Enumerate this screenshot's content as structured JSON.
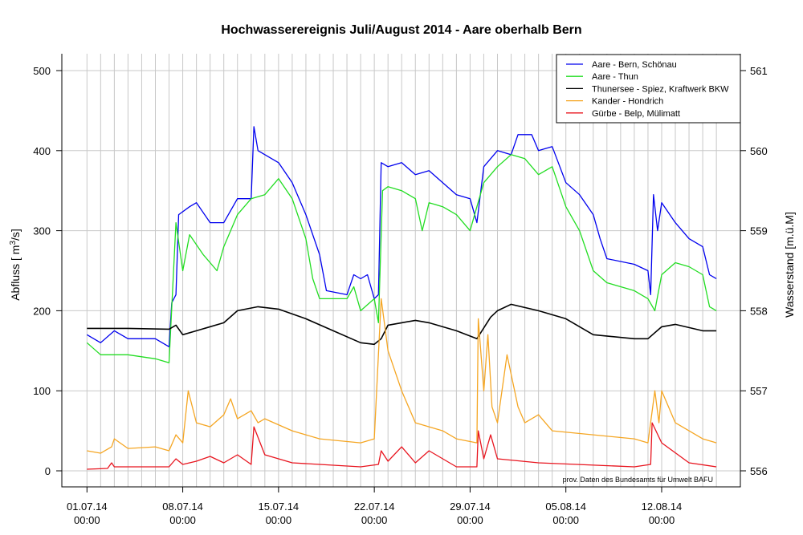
{
  "chart_data": {
    "type": "line",
    "title": "Hochwasserereignis Juli/August 2014 - Aare oberhalb Bern",
    "ylabel": "Abfluss [ m³/s]",
    "ylabel_main": "Abfluss [ m",
    "ylabel_sup": "3",
    "ylabel_end": "/s]",
    "y2label": "Wasserstand [m.ü.M]",
    "ylim": [
      0,
      500
    ],
    "y2lim": [
      556,
      561
    ],
    "yticks": [
      "0",
      "100",
      "200",
      "300",
      "400",
      "500"
    ],
    "y2ticks": [
      "556",
      "557",
      "558",
      "559",
      "560",
      "561"
    ],
    "xticks": [
      {
        "day": 0,
        "date": "01.07.14",
        "time": "00:00"
      },
      {
        "day": 7,
        "date": "08.07.14",
        "time": "00:00"
      },
      {
        "day": 14,
        "date": "15.07.14",
        "time": "00:00"
      },
      {
        "day": 21,
        "date": "22.07.14",
        "time": "00:00"
      },
      {
        "day": 28,
        "date": "29.07.14",
        "time": "00:00"
      },
      {
        "day": 35,
        "date": "05.08.14",
        "time": "00:00"
      },
      {
        "day": 42,
        "date": "12.08.14",
        "time": "00:00"
      }
    ],
    "x_unit": "days since 01.07.14 00:00",
    "grid": true,
    "legend_position": "top-right",
    "note": "prov. Daten des Bundesamts für Umwelt BAFU",
    "series": [
      {
        "name": "Aare - Bern, Schönau",
        "color": "#0000ee",
        "points": [
          [
            0,
            170
          ],
          [
            1,
            160
          ],
          [
            2,
            175
          ],
          [
            3,
            165
          ],
          [
            5,
            165
          ],
          [
            6,
            155
          ],
          [
            6.2,
            210
          ],
          [
            6.5,
            220
          ],
          [
            6.7,
            320
          ],
          [
            7.5,
            330
          ],
          [
            8,
            335
          ],
          [
            9,
            310
          ],
          [
            10,
            310
          ],
          [
            11,
            340
          ],
          [
            12,
            340
          ],
          [
            12.2,
            430
          ],
          [
            12.5,
            400
          ],
          [
            13.5,
            390
          ],
          [
            14,
            385
          ],
          [
            15,
            360
          ],
          [
            16,
            320
          ],
          [
            17,
            270
          ],
          [
            17.5,
            225
          ],
          [
            19,
            220
          ],
          [
            19.5,
            245
          ],
          [
            20,
            240
          ],
          [
            20.5,
            245
          ],
          [
            21,
            215
          ],
          [
            21.3,
            220
          ],
          [
            21.5,
            385
          ],
          [
            22,
            380
          ],
          [
            23,
            385
          ],
          [
            24,
            370
          ],
          [
            25,
            375
          ],
          [
            26,
            360
          ],
          [
            27,
            345
          ],
          [
            28,
            340
          ],
          [
            28.5,
            310
          ],
          [
            29,
            380
          ],
          [
            30,
            400
          ],
          [
            31,
            395
          ],
          [
            31.5,
            420
          ],
          [
            32.5,
            420
          ],
          [
            33,
            400
          ],
          [
            34,
            405
          ],
          [
            35,
            360
          ],
          [
            36,
            345
          ],
          [
            37,
            320
          ],
          [
            37.5,
            290
          ],
          [
            38,
            265
          ],
          [
            40,
            258
          ],
          [
            41,
            250
          ],
          [
            41.2,
            220
          ],
          [
            41.4,
            345
          ],
          [
            41.7,
            300
          ],
          [
            42,
            335
          ],
          [
            43,
            310
          ],
          [
            44,
            290
          ],
          [
            45,
            280
          ],
          [
            45.5,
            245
          ],
          [
            46,
            240
          ]
        ]
      },
      {
        "name": "Aare - Thun",
        "color": "#22dd22",
        "points": [
          [
            0,
            160
          ],
          [
            1,
            145
          ],
          [
            3,
            145
          ],
          [
            5,
            140
          ],
          [
            6,
            135
          ],
          [
            6.5,
            310
          ],
          [
            7,
            250
          ],
          [
            7.5,
            295
          ],
          [
            8.5,
            270
          ],
          [
            9.5,
            250
          ],
          [
            10,
            280
          ],
          [
            11,
            320
          ],
          [
            12,
            340
          ],
          [
            13,
            345
          ],
          [
            14,
            365
          ],
          [
            15,
            340
          ],
          [
            16,
            290
          ],
          [
            16.5,
            240
          ],
          [
            17,
            215
          ],
          [
            19,
            215
          ],
          [
            19.5,
            230
          ],
          [
            20,
            200
          ],
          [
            21,
            215
          ],
          [
            21.3,
            185
          ],
          [
            21.6,
            350
          ],
          [
            22,
            355
          ],
          [
            23,
            350
          ],
          [
            24,
            340
          ],
          [
            24.5,
            300
          ],
          [
            25,
            335
          ],
          [
            26,
            330
          ],
          [
            27,
            320
          ],
          [
            28,
            300
          ],
          [
            28.5,
            330
          ],
          [
            29,
            360
          ],
          [
            30,
            380
          ],
          [
            31,
            395
          ],
          [
            32,
            390
          ],
          [
            33,
            370
          ],
          [
            34,
            380
          ],
          [
            35,
            330
          ],
          [
            36,
            300
          ],
          [
            37,
            250
          ],
          [
            38,
            235
          ],
          [
            40,
            225
          ],
          [
            41,
            215
          ],
          [
            41.5,
            200
          ],
          [
            42,
            245
          ],
          [
            43,
            260
          ],
          [
            44,
            255
          ],
          [
            45,
            245
          ],
          [
            45.5,
            205
          ],
          [
            46,
            200
          ]
        ]
      },
      {
        "name": "Thunersee - Spiez, Kraftwerk BKW",
        "color": "#000000",
        "points": [
          [
            0,
            178
          ],
          [
            3,
            178
          ],
          [
            6,
            177
          ],
          [
            6.5,
            182
          ],
          [
            7,
            170
          ],
          [
            8,
            175
          ],
          [
            10,
            185
          ],
          [
            11,
            200
          ],
          [
            12.5,
            205
          ],
          [
            14,
            202
          ],
          [
            16,
            190
          ],
          [
            18,
            175
          ],
          [
            20,
            160
          ],
          [
            21,
            158
          ],
          [
            21.5,
            165
          ],
          [
            22,
            182
          ],
          [
            23,
            185
          ],
          [
            24,
            188
          ],
          [
            25,
            185
          ],
          [
            27,
            175
          ],
          [
            28.5,
            165
          ],
          [
            29.5,
            192
          ],
          [
            30,
            200
          ],
          [
            31,
            208
          ],
          [
            33,
            200
          ],
          [
            35,
            190
          ],
          [
            37,
            170
          ],
          [
            40,
            165
          ],
          [
            41,
            165
          ],
          [
            42,
            180
          ],
          [
            43,
            183
          ],
          [
            45,
            175
          ],
          [
            46,
            175
          ]
        ]
      },
      {
        "name": "Kander - Hondrich",
        "color": "#f5a623",
        "points": [
          [
            0,
            25
          ],
          [
            1,
            22
          ],
          [
            1.8,
            30
          ],
          [
            2,
            40
          ],
          [
            3,
            28
          ],
          [
            5,
            30
          ],
          [
            6,
            25
          ],
          [
            6.5,
            45
          ],
          [
            7,
            35
          ],
          [
            7.4,
            100
          ],
          [
            8,
            60
          ],
          [
            9,
            55
          ],
          [
            10,
            70
          ],
          [
            10.5,
            90
          ],
          [
            11,
            65
          ],
          [
            12,
            75
          ],
          [
            12.5,
            60
          ],
          [
            13,
            65
          ],
          [
            15,
            50
          ],
          [
            16,
            45
          ],
          [
            17,
            40
          ],
          [
            20,
            35
          ],
          [
            21,
            40
          ],
          [
            21.5,
            215
          ],
          [
            22,
            150
          ],
          [
            23,
            100
          ],
          [
            24,
            60
          ],
          [
            25,
            55
          ],
          [
            26,
            50
          ],
          [
            27,
            40
          ],
          [
            28.5,
            35
          ],
          [
            28.6,
            190
          ],
          [
            29,
            100
          ],
          [
            29.3,
            170
          ],
          [
            29.6,
            80
          ],
          [
            30,
            60
          ],
          [
            30.7,
            145
          ],
          [
            31.5,
            80
          ],
          [
            32,
            60
          ],
          [
            33,
            70
          ],
          [
            34,
            50
          ],
          [
            37,
            45
          ],
          [
            40,
            40
          ],
          [
            41,
            35
          ],
          [
            41.5,
            100
          ],
          [
            41.8,
            60
          ],
          [
            42,
            100
          ],
          [
            43,
            60
          ],
          [
            45,
            40
          ],
          [
            46,
            35
          ]
        ]
      },
      {
        "name": "Gürbe - Belp, Mülimatt",
        "color": "#e8141e",
        "points": [
          [
            0,
            2
          ],
          [
            1.5,
            3
          ],
          [
            1.8,
            10
          ],
          [
            2,
            5
          ],
          [
            6,
            5
          ],
          [
            6.5,
            15
          ],
          [
            7,
            8
          ],
          [
            8,
            12
          ],
          [
            9,
            18
          ],
          [
            10,
            10
          ],
          [
            11,
            20
          ],
          [
            12,
            8
          ],
          [
            12.2,
            55
          ],
          [
            13,
            20
          ],
          [
            15,
            10
          ],
          [
            20,
            5
          ],
          [
            21.3,
            8
          ],
          [
            21.5,
            25
          ],
          [
            22,
            12
          ],
          [
            23,
            30
          ],
          [
            24,
            10
          ],
          [
            25,
            25
          ],
          [
            27,
            5
          ],
          [
            28.5,
            5
          ],
          [
            28.6,
            50
          ],
          [
            29,
            15
          ],
          [
            29.5,
            45
          ],
          [
            30,
            15
          ],
          [
            33,
            10
          ],
          [
            40,
            5
          ],
          [
            41.2,
            8
          ],
          [
            41.3,
            60
          ],
          [
            42,
            35
          ],
          [
            44,
            10
          ],
          [
            46,
            5
          ]
        ]
      }
    ]
  }
}
